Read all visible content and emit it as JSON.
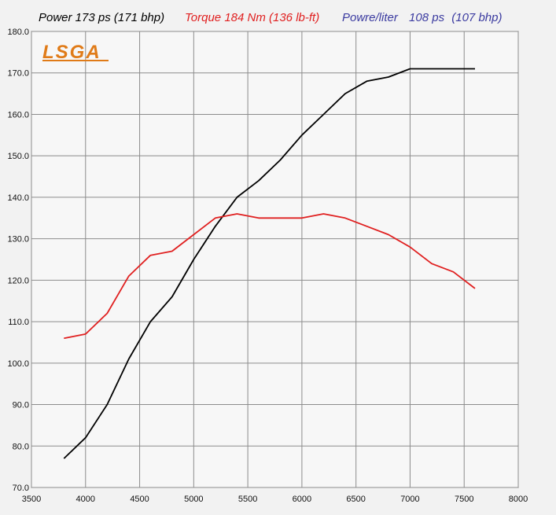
{
  "header": {
    "power_text": "Power 173 ps (171 bhp)",
    "torque_text": "Torque 184 Nm (136 lb-ft)",
    "per_liter_label": "Powre/liter",
    "per_liter_ps": "108 ps",
    "per_liter_bhp": "(107 bhp)"
  },
  "logo": {
    "text": "LSGA"
  },
  "colors": {
    "power": "#000000",
    "torque": "#e02020",
    "per_liter": "#3b3ba0",
    "logo": "#e07b18",
    "grid": "#8c8c8c",
    "plot_bg": "#f7f7f7"
  },
  "chart_data": {
    "type": "line",
    "title": "",
    "xlabel": "",
    "ylabel": "",
    "xlim": [
      3500,
      8000
    ],
    "ylim": [
      70,
      180
    ],
    "x_ticks": [
      3500,
      4000,
      4500,
      5000,
      5500,
      6000,
      6500,
      7000,
      7500,
      8000
    ],
    "y_ticks": [
      70,
      80,
      90,
      100,
      110,
      120,
      130,
      140,
      150,
      160,
      170,
      180
    ],
    "x_tick_labels": [
      "3500",
      "4000",
      "4500",
      "5000",
      "5500",
      "6000",
      "6500",
      "7000",
      "7500",
      "8000"
    ],
    "y_tick_labels": [
      "70.0",
      "80.0",
      "90.0",
      "100.0",
      "110.0",
      "120.0",
      "130.0",
      "140.0",
      "150.0",
      "160.0",
      "170.0",
      "180.0"
    ],
    "grid": true,
    "series": [
      {
        "name": "Power",
        "color": "#000000",
        "x": [
          3800,
          4000,
          4200,
          4400,
          4600,
          4800,
          5000,
          5200,
          5400,
          5600,
          5800,
          6000,
          6200,
          6400,
          6600,
          6800,
          7000,
          7200,
          7400,
          7600
        ],
        "y": [
          77,
          82,
          90,
          101,
          110,
          116,
          125,
          133,
          140,
          144,
          149,
          155,
          160,
          165,
          168,
          169,
          171,
          171,
          171,
          171
        ]
      },
      {
        "name": "Torque",
        "color": "#e02020",
        "x": [
          3800,
          4000,
          4200,
          4400,
          4600,
          4800,
          5000,
          5200,
          5400,
          5600,
          5800,
          6000,
          6200,
          6400,
          6600,
          6800,
          7000,
          7200,
          7400,
          7600
        ],
        "y": [
          106,
          107,
          112,
          121,
          126,
          127,
          131,
          135,
          136,
          135,
          135,
          135,
          136,
          135,
          133,
          131,
          128,
          124,
          122,
          118
        ]
      }
    ]
  }
}
